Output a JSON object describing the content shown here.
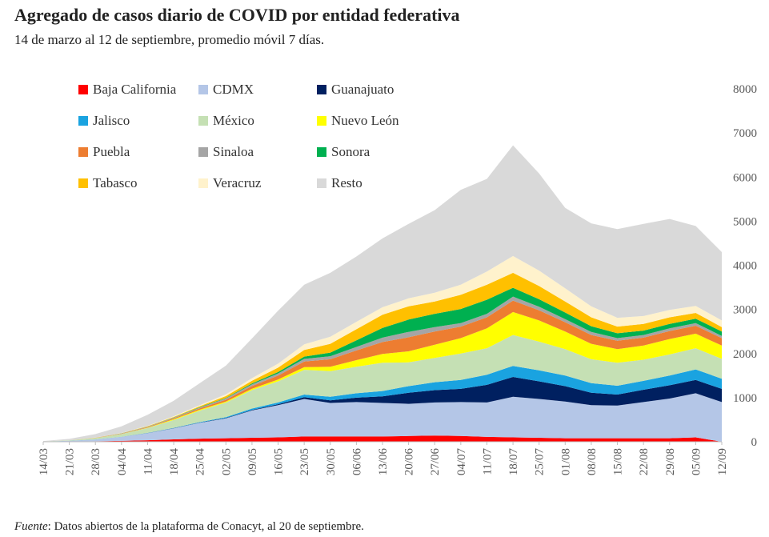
{
  "title": "Agregado de casos diario de COVID por entidad federativa",
  "subtitle": "14 de marzo al 12 de septiembre, promedio móvil 7 días.",
  "source": {
    "label": "Fuente",
    "text": ": Datos abiertos de la plataforma de Conacyt, al 20 de septiembre."
  },
  "chart_data": {
    "type": "area",
    "stacked": true,
    "title": "Agregado de casos diario de COVID por entidad federativa",
    "ylim": [
      0,
      8000
    ],
    "yticks": [
      "0",
      "1000",
      "2000",
      "3000",
      "4000",
      "5000",
      "6000",
      "7000",
      "8000"
    ],
    "x": [
      0,
      7,
      14,
      21,
      28,
      35,
      42,
      49,
      56,
      63,
      70,
      77,
      84,
      91,
      98,
      105,
      112,
      119,
      126,
      133,
      140,
      147,
      154,
      161,
      168,
      175,
      182
    ],
    "categories": [
      "14/03",
      "21/03",
      "28/03",
      "04/04",
      "11/04",
      "18/04",
      "25/04",
      "02/05",
      "09/05",
      "16/05",
      "23/05",
      "30/05",
      "06/06",
      "13/06",
      "20/06",
      "27/06",
      "04/07",
      "11/07",
      "18/07",
      "25/07",
      "01/08",
      "08/08",
      "15/08",
      "22/08",
      "29/08",
      "05/09",
      "12/09"
    ],
    "series": [
      {
        "name": "Baja California",
        "color": "#ff0000",
        "values": [
          0,
          5,
          10,
          20,
          35,
          55,
          70,
          80,
          90,
          100,
          120,
          120,
          120,
          120,
          130,
          140,
          130,
          110,
          100,
          90,
          80,
          80,
          80,
          80,
          80,
          100,
          0
        ]
      },
      {
        "name": "CDMX",
        "color": "#b4c6e7",
        "values": [
          5,
          15,
          40,
          90,
          160,
          250,
          360,
          450,
          620,
          730,
          850,
          760,
          780,
          760,
          730,
          750,
          770,
          780,
          920,
          880,
          830,
          750,
          740,
          820,
          900,
          1000,
          900
        ]
      },
      {
        "name": "Guanajuato",
        "color": "#002060",
        "values": [
          0,
          0,
          0,
          1,
          2,
          3,
          5,
          8,
          12,
          20,
          40,
          60,
          100,
          150,
          250,
          280,
          300,
          400,
          450,
          400,
          350,
          280,
          250,
          280,
          300,
          300,
          300
        ]
      },
      {
        "name": "Jalisco",
        "color": "#1aa3e0",
        "values": [
          0,
          1,
          2,
          3,
          5,
          8,
          12,
          20,
          30,
          40,
          60,
          80,
          100,
          120,
          150,
          180,
          200,
          230,
          250,
          250,
          240,
          220,
          200,
          200,
          220,
          240,
          230
        ]
      },
      {
        "name": "México",
        "color": "#c5e0b4",
        "values": [
          2,
          10,
          30,
          60,
          110,
          180,
          260,
          330,
          420,
          480,
          560,
          580,
          600,
          640,
          540,
          550,
          600,
          600,
          700,
          650,
          600,
          540,
          520,
          480,
          480,
          480,
          450
        ]
      },
      {
        "name": "Nuevo León",
        "color": "#ffff00",
        "values": [
          0,
          1,
          2,
          4,
          8,
          15,
          20,
          25,
          30,
          40,
          60,
          100,
          150,
          200,
          250,
          300,
          350,
          450,
          520,
          480,
          400,
          350,
          310,
          320,
          350,
          330,
          300
        ]
      },
      {
        "name": "Puebla",
        "color": "#ed7d31",
        "values": [
          0,
          1,
          3,
          6,
          12,
          20,
          30,
          40,
          60,
          90,
          130,
          170,
          220,
          270,
          320,
          300,
          260,
          250,
          260,
          230,
          210,
          200,
          190,
          180,
          180,
          180,
          170
        ]
      },
      {
        "name": "Sinaloa",
        "color": "#a5a5a5",
        "values": [
          0,
          1,
          3,
          6,
          10,
          15,
          20,
          30,
          40,
          50,
          60,
          70,
          80,
          100,
          120,
          100,
          80,
          80,
          90,
          80,
          70,
          70,
          60,
          60,
          60,
          60,
          50
        ]
      },
      {
        "name": "Sonora",
        "color": "#00b050",
        "values": [
          0,
          0,
          1,
          2,
          3,
          5,
          8,
          12,
          20,
          30,
          50,
          80,
          150,
          220,
          280,
          300,
          320,
          320,
          200,
          170,
          150,
          130,
          110,
          100,
          100,
          100,
          100
        ]
      },
      {
        "name": "Tabasco",
        "color": "#ffc000",
        "values": [
          0,
          1,
          2,
          4,
          8,
          12,
          20,
          40,
          60,
          100,
          150,
          200,
          250,
          300,
          300,
          280,
          320,
          340,
          340,
          300,
          250,
          200,
          150,
          150,
          150,
          130,
          100
        ]
      },
      {
        "name": "Veracruz",
        "color": "#fff2cc",
        "values": [
          0,
          1,
          2,
          4,
          8,
          15,
          25,
          40,
          60,
          90,
          130,
          160,
          170,
          170,
          180,
          200,
          230,
          300,
          380,
          350,
          300,
          250,
          200,
          180,
          170,
          160,
          150
        ]
      },
      {
        "name": "Resto",
        "color": "#d9d9d9",
        "values": [
          10,
          30,
          80,
          150,
          250,
          350,
          500,
          650,
          900,
          1200,
          1350,
          1450,
          1480,
          1560,
          1690,
          1870,
          2150,
          2100,
          2510,
          2200,
          1820,
          1880,
          2010,
          2090,
          2060,
          1810,
          1550
        ]
      }
    ]
  }
}
